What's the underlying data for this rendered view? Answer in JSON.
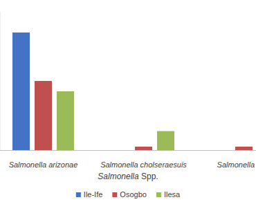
{
  "chart_data": {
    "type": "bar",
    "x_label": "Salmonella Spp.",
    "categories": [
      "Salmonella arizonae",
      "Salmonella cholseraesuis",
      "Salmonella"
    ],
    "series": [
      {
        "name": "Ile-Ife",
        "color": "#4472c4",
        "values": [
          34,
          0,
          0
        ]
      },
      {
        "name": "Osogbo",
        "color": "#c0504d",
        "values": [
          20,
          1,
          1
        ]
      },
      {
        "name": "Ilesa",
        "color": "#9bbb59",
        "values": [
          17,
          5.5,
          0
        ]
      }
    ],
    "ylim": [
      0,
      40
    ],
    "tick_labels": "x",
    "grid": false,
    "legend": "bottom"
  }
}
